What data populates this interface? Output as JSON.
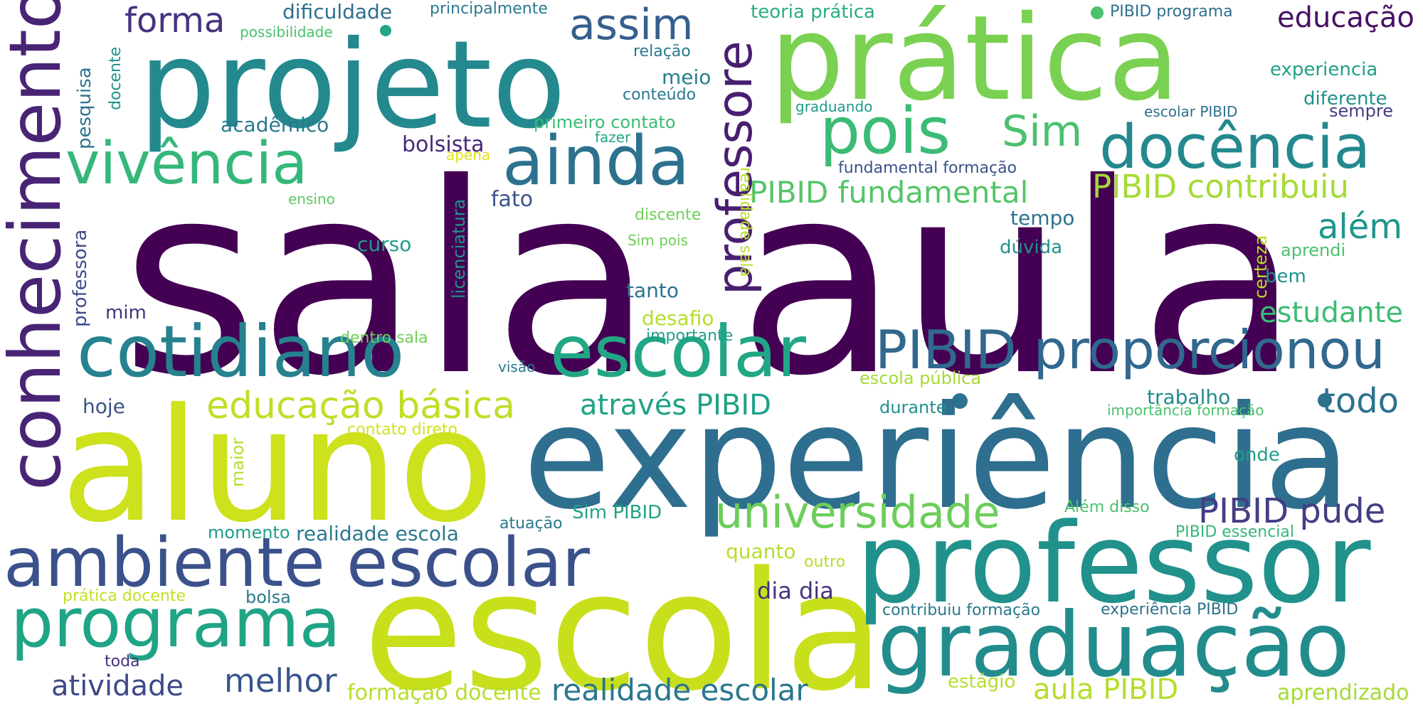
{
  "words": [
    {
      "text": "sala aula",
      "color": "#440154"
    },
    {
      "text": "experiência",
      "color": "#2e6e8e"
    },
    {
      "text": "escola",
      "color": "#c8df1c"
    },
    {
      "text": "aluno",
      "color": "#cde11d"
    },
    {
      "text": "projeto",
      "color": "#23898e"
    },
    {
      "text": "prática",
      "color": "#7ad151"
    },
    {
      "text": "professor",
      "color": "#21918c"
    },
    {
      "text": "graduação",
      "color": "#228c8d"
    },
    {
      "text": "conhecimento",
      "color": "#482475"
    },
    {
      "text": "cotidiano",
      "color": "#26828e"
    },
    {
      "text": "escolar",
      "color": "#22a785"
    },
    {
      "text": "ambiente escolar",
      "color": "#3b518b"
    },
    {
      "text": "programa",
      "color": "#20a486"
    },
    {
      "text": "docência",
      "color": "#23898e"
    },
    {
      "text": "vivência",
      "color": "#35b779"
    },
    {
      "text": "ainda",
      "color": "#2c728e"
    },
    {
      "text": "pois",
      "color": "#3bbb75"
    },
    {
      "text": "professore",
      "color": "#481f70"
    },
    {
      "text": "PIBID proporcionou",
      "color": "#31688e"
    },
    {
      "text": "universidade",
      "color": "#6ccd5a"
    },
    {
      "text": "educação básica",
      "color": "#bddf26"
    },
    {
      "text": "assim",
      "color": "#355f8d"
    },
    {
      "text": "Sim",
      "color": "#4ac16d"
    },
    {
      "text": "PIBID fundamental",
      "color": "#54c568"
    },
    {
      "text": "PIBID contribuiu",
      "color": "#a5db36"
    },
    {
      "text": "forma",
      "color": "#46327e"
    },
    {
      "text": "além",
      "color": "#1f958b"
    },
    {
      "text": "estudante",
      "color": "#3dbc74"
    },
    {
      "text": "todo",
      "color": "#2c728e"
    },
    {
      "text": "PIBID pude",
      "color": "#433e85"
    },
    {
      "text": "através PIBID",
      "color": "#1fa187"
    },
    {
      "text": "melhor",
      "color": "#39568c"
    },
    {
      "text": "atividade",
      "color": "#3e4989"
    },
    {
      "text": "realidade escolar",
      "color": "#2a778e"
    },
    {
      "text": "aula PIBID",
      "color": "#b5de2b"
    },
    {
      "text": "educação",
      "color": "#471063"
    },
    {
      "text": "dificuldade",
      "color": "#2d708e"
    },
    {
      "text": "principalmente",
      "color": "#2a788e"
    },
    {
      "text": "possibilidade",
      "color": "#4ac16d"
    },
    {
      "text": "docente",
      "color": "#21918c"
    },
    {
      "text": "pesquisa",
      "color": "#2c728e"
    },
    {
      "text": "relação",
      "color": "#2a788e"
    },
    {
      "text": "meio",
      "color": "#277f8e"
    },
    {
      "text": "conteúdo",
      "color": "#2a788e"
    },
    {
      "text": "teoria prática",
      "color": "#29af7f"
    },
    {
      "text": "PIBID programa",
      "color": "#2c728e"
    },
    {
      "text": "experiencia",
      "color": "#1fa187"
    },
    {
      "text": "diferente",
      "color": "#21918c"
    },
    {
      "text": "sempre",
      "color": "#433e85"
    },
    {
      "text": "escolar PIBID",
      "color": "#2d708e"
    },
    {
      "text": "realidade sala",
      "color": "#b5de2b"
    },
    {
      "text": "graduando",
      "color": "#1e9b8a"
    },
    {
      "text": "acadêmico",
      "color": "#2a788e"
    },
    {
      "text": "primeiro contato",
      "color": "#3bbb75"
    },
    {
      "text": "fazer",
      "color": "#22a785"
    },
    {
      "text": "bolsista",
      "color": "#482878"
    },
    {
      "text": "apena",
      "color": "#dde318"
    },
    {
      "text": "fundamental formação",
      "color": "#3b528b"
    },
    {
      "text": "ensino",
      "color": "#5ec962"
    },
    {
      "text": "fato",
      "color": "#3b528b"
    },
    {
      "text": "discente",
      "color": "#6ece58"
    },
    {
      "text": "licenciatura",
      "color": "#1f968b"
    },
    {
      "text": "tempo",
      "color": "#2c728e"
    },
    {
      "text": "curso",
      "color": "#1f9e89"
    },
    {
      "text": "Sim pois",
      "color": "#6ece58"
    },
    {
      "text": "dúvida",
      "color": "#21918c"
    },
    {
      "text": "certeza",
      "color": "#bddf26"
    },
    {
      "text": "aprendi",
      "color": "#4ac16d"
    },
    {
      "text": "bem",
      "color": "#21918c"
    },
    {
      "text": "professora",
      "color": "#3e4989"
    },
    {
      "text": "mim",
      "color": "#46327e"
    },
    {
      "text": "tanto",
      "color": "#2c728e"
    },
    {
      "text": "desafio",
      "color": "#b5de2b"
    },
    {
      "text": "importante",
      "color": "#1f9e89"
    },
    {
      "text": "dentro sala",
      "color": "#6ece58"
    },
    {
      "text": "visão",
      "color": "#2a788e"
    },
    {
      "text": "escola pública",
      "color": "#a5db36"
    },
    {
      "text": "hoje",
      "color": "#3b528b"
    },
    {
      "text": "trabalho",
      "color": "#23898e"
    },
    {
      "text": "importância formação",
      "color": "#4ac16d"
    },
    {
      "text": "durante",
      "color": "#21918c"
    },
    {
      "text": "contato direto",
      "color": "#d2e21b"
    },
    {
      "text": "maior",
      "color": "#b5de2b"
    },
    {
      "text": "onde",
      "color": "#1f9e89"
    },
    {
      "text": "Sim PIBID",
      "color": "#20a486"
    },
    {
      "text": "Além disso",
      "color": "#4ac16d"
    },
    {
      "text": "momento",
      "color": "#1f9e89"
    },
    {
      "text": "realidade escola",
      "color": "#2a788e"
    },
    {
      "text": "atuação",
      "color": "#2a788e"
    },
    {
      "text": "PIBID essencial",
      "color": "#35b779"
    },
    {
      "text": "quanto",
      "color": "#b5de2b"
    },
    {
      "text": "outro",
      "color": "#b5de2b"
    },
    {
      "text": "prática docente",
      "color": "#c2df23"
    },
    {
      "text": "bolsa",
      "color": "#2a788e"
    },
    {
      "text": "dia dia",
      "color": "#46327e"
    },
    {
      "text": "contribuiu formação",
      "color": "#2a788e"
    },
    {
      "text": "experiência PIBID",
      "color": "#2c728e"
    },
    {
      "text": "toda",
      "color": "#46327e"
    },
    {
      "text": "formação docente",
      "color": "#b5de2b"
    },
    {
      "text": "estágio",
      "color": "#b5de2b"
    },
    {
      "text": "aprendizado",
      "color": "#a5db36"
    }
  ]
}
